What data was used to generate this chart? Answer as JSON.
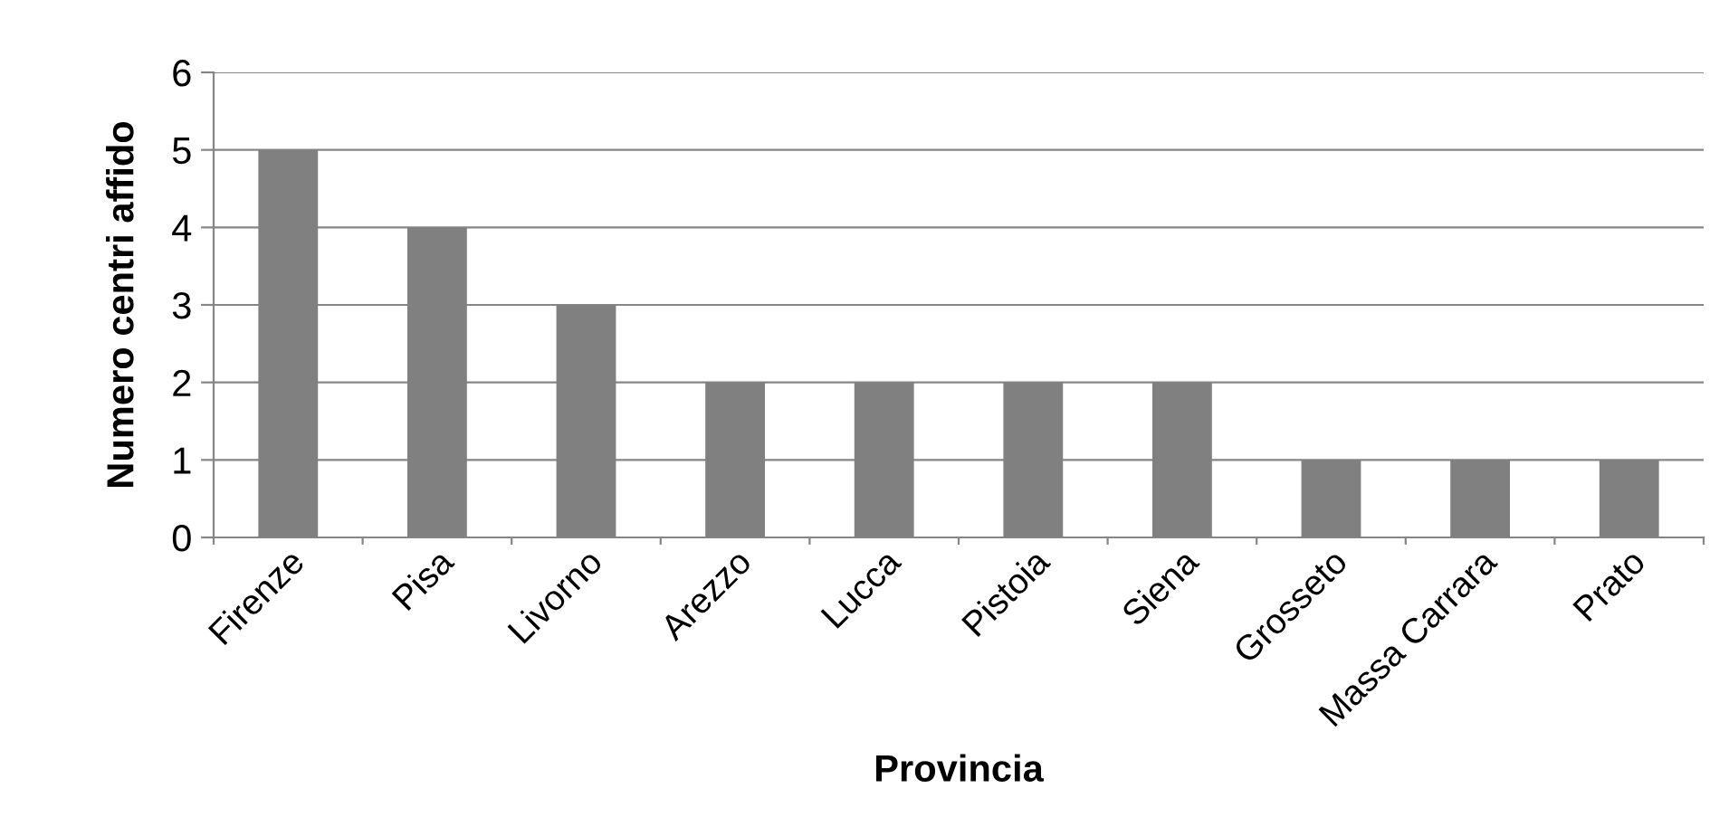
{
  "chart_data": {
    "type": "bar",
    "xlabel": "Provincia",
    "ylabel": "Numero centri affido",
    "categories": [
      "Firenze",
      "Pisa",
      "Livorno",
      "Arezzo",
      "Lucca",
      "Pistoia",
      "Siena",
      "Grosseto",
      "Massa Carrara",
      "Prato"
    ],
    "values": [
      5,
      4,
      3,
      2,
      2,
      2,
      2,
      1,
      1,
      1
    ],
    "color": "#808080",
    "ylim": [
      0,
      6
    ],
    "yticks": [
      0,
      1,
      2,
      3,
      4,
      5,
      6
    ],
    "grid": "y",
    "legend": false
  }
}
